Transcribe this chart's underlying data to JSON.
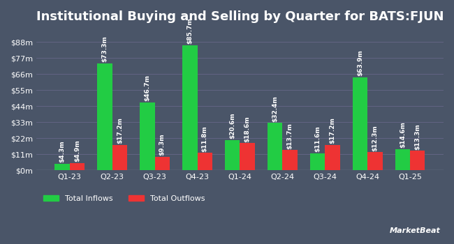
{
  "title": "Institutional Buying and Selling by Quarter for BATS:FJUN",
  "quarters": [
    "Q1-23",
    "Q2-23",
    "Q3-23",
    "Q4-23",
    "Q1-24",
    "Q2-24",
    "Q3-24",
    "Q4-24",
    "Q1-25"
  ],
  "inflows": [
    4.3,
    73.3,
    46.7,
    85.7,
    20.6,
    32.4,
    11.6,
    63.9,
    14.6
  ],
  "outflows": [
    4.9,
    17.2,
    9.3,
    11.8,
    18.6,
    13.7,
    17.2,
    12.3,
    13.3
  ],
  "inflow_labels": [
    "$4.3m",
    "$73.3m",
    "$46.7m",
    "$85.7m",
    "$20.6m",
    "$32.4m",
    "$11.6m",
    "$63.9m",
    "$14.6m"
  ],
  "outflow_labels": [
    "$4.9m",
    "$17.2m",
    "$9.3m",
    "$11.8m",
    "$18.6m",
    "$13.7m",
    "$17.2m",
    "$12.3m",
    "$13.3m"
  ],
  "inflow_color": "#22cc44",
  "outflow_color": "#ee3333",
  "background_color": "#4a5568",
  "plot_bg_color": "#4a5568",
  "text_color": "#ffffff",
  "grid_color": "#666688",
  "yticks": [
    0,
    11,
    22,
    33,
    44,
    55,
    66,
    77,
    88
  ],
  "ytick_labels": [
    "$0m",
    "$11m",
    "$22m",
    "$33m",
    "$44m",
    "$55m",
    "$66m",
    "$77m",
    "$88m"
  ],
  "ylim": [
    0,
    95
  ],
  "bar_width": 0.35,
  "title_fontsize": 13,
  "label_fontsize": 6.5,
  "tick_fontsize": 8,
  "legend_fontsize": 8
}
